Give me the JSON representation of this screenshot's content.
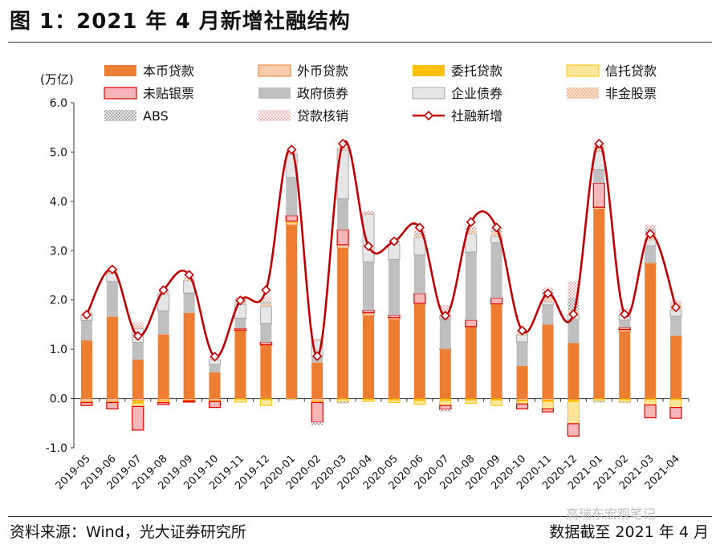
{
  "header": {
    "title": "图 1：2021 年 4 月新增社融结构"
  },
  "footer": {
    "source": "资料来源：Wind，光大证券研究所",
    "cutoff": "数据截至 2021 年 4 月"
  },
  "watermark": {
    "text": "高瑞东宏观笔记"
  },
  "chart_data": {
    "type": "bar",
    "title": "",
    "ylabel": "(万亿)",
    "xlabel": "",
    "ylim": [
      -1.0,
      6.0
    ],
    "yticks": [
      "-1.0",
      "0.0",
      "1.0",
      "2.0",
      "3.0",
      "4.0",
      "5.0",
      "6.0"
    ],
    "categories": [
      "2019-05",
      "2019-06",
      "2019-07",
      "2019-08",
      "2019-09",
      "2019-10",
      "2019-11",
      "2019-12",
      "2020-01",
      "2020-02",
      "2020-03",
      "2020-04",
      "2020-05",
      "2020-06",
      "2020-07",
      "2020-08",
      "2020-09",
      "2020-10",
      "2020-11",
      "2020-12",
      "2021-01",
      "2021-02",
      "2021-03",
      "2021-04"
    ],
    "series": [
      {
        "name": "本币贷款",
        "color": "#ED7D31",
        "pattern": "solid",
        "values": [
          1.18,
          1.66,
          0.79,
          1.3,
          1.74,
          0.53,
          1.37,
          1.08,
          3.52,
          0.73,
          3.05,
          1.68,
          1.6,
          1.91,
          0.99,
          1.45,
          1.9,
          0.66,
          1.5,
          1.13,
          3.84,
          1.36,
          2.73,
          1.26
        ]
      },
      {
        "name": "外币贷款",
        "color": "#F8CBAD",
        "pattern": "outline",
        "values": [
          -0.06,
          -0.06,
          -0.04,
          -0.03,
          -0.03,
          -0.04,
          0.02,
          0.01,
          0.05,
          -0.05,
          0.07,
          0.06,
          0.04,
          0.02,
          0.02,
          0.01,
          0.02,
          -0.03,
          -0.03,
          -0.02,
          0.04,
          0.04,
          0.02,
          0.01
        ]
      },
      {
        "name": "委托贷款",
        "color": "#FFC000",
        "pattern": "solid",
        "values": [
          -0.01,
          -0.01,
          -0.05,
          -0.01,
          -0.01,
          -0.01,
          -0.01,
          -0.02,
          -0.01,
          -0.01,
          -0.01,
          -0.02,
          -0.03,
          -0.04,
          -0.04,
          -0.03,
          -0.03,
          -0.02,
          -0.03,
          -0.04,
          -0.01,
          -0.02,
          -0.02,
          -0.02
        ]
      },
      {
        "name": "信托贷款",
        "color": "#FFE699",
        "pattern": "outline",
        "values": [
          -0.01,
          -0.01,
          -0.07,
          -0.04,
          -0.01,
          -0.01,
          -0.06,
          -0.12,
          0.03,
          -0.02,
          -0.05,
          -0.04,
          -0.05,
          -0.08,
          -0.1,
          -0.07,
          -0.11,
          -0.06,
          -0.15,
          -0.45,
          -0.04,
          -0.05,
          -0.11,
          -0.16
        ]
      },
      {
        "name": "未贴银票",
        "color": "#F4B6B6",
        "pattern": "redoutline",
        "values": [
          -0.06,
          -0.13,
          -0.48,
          -0.04,
          -0.02,
          -0.12,
          0.03,
          0.05,
          0.11,
          -0.4,
          0.3,
          0.05,
          0.05,
          0.2,
          -0.08,
          0.13,
          0.12,
          -0.1,
          -0.06,
          -0.25,
          0.49,
          0.04,
          -0.26,
          -0.22
        ]
      },
      {
        "name": "政府债券",
        "color": "#BFBFBF",
        "pattern": "solid",
        "values": [
          0.4,
          0.71,
          0.35,
          0.48,
          0.4,
          0.16,
          0.21,
          0.38,
          0.77,
          0.12,
          0.63,
          0.98,
          1.13,
          0.78,
          0.61,
          1.38,
          1.12,
          0.49,
          0.4,
          0.47,
          0.27,
          0.15,
          0.35,
          0.4
        ]
      },
      {
        "name": "企业债券",
        "color": "#E7E6E6",
        "pattern": "outline",
        "values": [
          0.12,
          0.17,
          0.28,
          0.33,
          0.25,
          0.1,
          0.28,
          0.35,
          0.48,
          0.33,
          0.99,
          0.96,
          0.31,
          0.36,
          0.06,
          0.37,
          0.13,
          0.14,
          0.06,
          0.1,
          0.38,
          0.11,
          0.12,
          0.13
        ]
      },
      {
        "name": "非金股票",
        "color": "#F4B183",
        "pattern": "dots",
        "values": [
          0.02,
          0.03,
          0.04,
          0.02,
          0.03,
          0.01,
          0.03,
          0.05,
          0.03,
          0.02,
          0.05,
          0.02,
          0.02,
          0.05,
          0.1,
          0.1,
          0.09,
          0.06,
          0.11,
          0.08,
          0.1,
          0.08,
          0.13,
          0.12
        ]
      },
      {
        "name": "ABS",
        "color": "#A6A6A6",
        "pattern": "checker",
        "values": [
          0.01,
          0.02,
          0.02,
          0.05,
          0.02,
          0.01,
          0.07,
          0.05,
          -0.02,
          -0.06,
          -0.04,
          0.03,
          0.04,
          0.04,
          -0.04,
          0.03,
          0.05,
          0.02,
          0.12,
          0.27,
          -0.03,
          -0.02,
          0.1,
          0.01
        ]
      },
      {
        "name": "贷款核销",
        "color": "#F4B6B6",
        "pattern": "lightcheck",
        "values": [
          0.03,
          0.05,
          0.07,
          0.02,
          0.04,
          0.04,
          0.06,
          0.1,
          0.02,
          0.02,
          0.02,
          0.03,
          0.06,
          0.08,
          0.12,
          0.03,
          0.04,
          0.03,
          0.06,
          0.32,
          0.03,
          0.05,
          0.08,
          0.06
        ]
      },
      {
        "name": "社融新增",
        "color": "#C00000",
        "pattern": "line",
        "values": [
          1.7,
          2.62,
          1.27,
          2.2,
          2.51,
          0.85,
          1.99,
          2.2,
          5.05,
          0.86,
          5.17,
          3.09,
          3.19,
          3.47,
          1.68,
          3.58,
          3.47,
          1.38,
          2.13,
          1.71,
          5.17,
          1.71,
          3.34,
          1.85
        ]
      }
    ],
    "legend_position": "top",
    "grid": false
  }
}
